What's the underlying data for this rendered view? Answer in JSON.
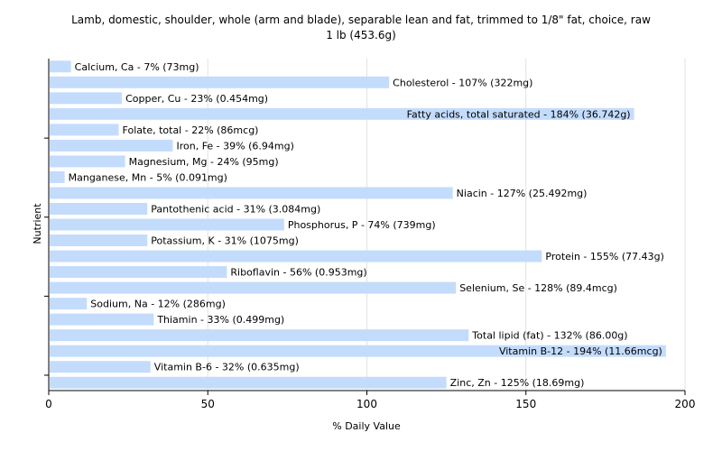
{
  "chart_data": {
    "type": "bar",
    "orientation": "horizontal",
    "title": "Lamb, domestic, shoulder, whole (arm and blade), separable lean and fat, trimmed to 1/8\" fat, choice, raw",
    "subtitle": "1 lb (453.6g)",
    "xlabel": "% Daily Value",
    "ylabel": "Nutrient",
    "xlim": [
      0,
      200
    ],
    "xticks": [
      "0",
      "50",
      "100",
      "150",
      "200"
    ],
    "grid": true,
    "bar_color": "#c4dcfc",
    "categories": [
      "Calcium, Ca",
      "Cholesterol",
      "Copper, Cu",
      "Fatty acids, total saturated",
      "Folate, total",
      "Iron, Fe",
      "Magnesium, Mg",
      "Manganese, Mn",
      "Niacin",
      "Pantothenic acid",
      "Phosphorus, P",
      "Potassium, K",
      "Protein",
      "Riboflavin",
      "Selenium, Se",
      "Sodium, Na",
      "Thiamin",
      "Total lipid (fat)",
      "Vitamin B-12",
      "Vitamin B-6",
      "Zinc, Zn"
    ],
    "values": [
      7,
      107,
      23,
      184,
      22,
      39,
      24,
      5,
      127,
      31,
      74,
      31,
      155,
      56,
      128,
      12,
      33,
      132,
      194,
      32,
      125
    ],
    "labels": [
      "Calcium, Ca - 7% (73mg)",
      "Cholesterol - 107% (322mg)",
      "Copper, Cu - 23% (0.454mg)",
      "Fatty acids, total saturated - 184% (36.742g)",
      "Folate, total - 22% (86mcg)",
      "Iron, Fe - 39% (6.94mg)",
      "Magnesium, Mg - 24% (95mg)",
      "Manganese, Mn - 5% (0.091mg)",
      "Niacin - 127% (25.492mg)",
      "Pantothenic acid - 31% (3.084mg)",
      "Phosphorus, P - 74% (739mg)",
      "Potassium, K - 31% (1075mg)",
      "Protein - 155% (77.43g)",
      "Riboflavin - 56% (0.953mg)",
      "Selenium, Se - 128% (89.4mcg)",
      "Sodium, Na - 12% (286mg)",
      "Thiamin - 33% (0.499mg)",
      "Total lipid (fat) - 132% (86.00g)",
      "Vitamin B-12 - 194% (11.66mcg)",
      "Vitamin B-6 - 32% (0.635mg)",
      "Zinc, Zn - 125% (18.69mg)"
    ]
  }
}
